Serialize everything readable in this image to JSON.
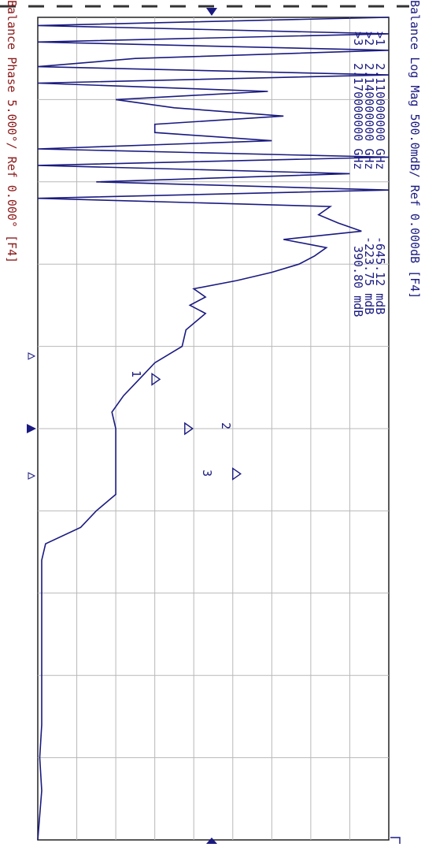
{
  "trace1": {
    "header": "Balance Log Mag 500.0mdB/ Ref 0.000dB [F4]",
    "color": "#1a1a80"
  },
  "trace2": {
    "header": "Balance Phase 5.000°/ Ref 0.000° [F4]",
    "color": "#8b1a1a"
  },
  "colors": {
    "background": "#ffffff",
    "grid": "#b8b8b8",
    "trace": "#1a1a80",
    "border": "#222222"
  },
  "grid": {
    "divisions_x": 10,
    "divisions_y": 9,
    "visible": true
  },
  "markers": [
    {
      "id": "1",
      "label": ">1",
      "freq": "2.110000000 GHz",
      "value": "-645.12 mdB",
      "number": "1"
    },
    {
      "id": "2",
      "label": ">2",
      "freq": "2.140000000 GHz",
      "value": "-223.75 mdB",
      "number": "2"
    },
    {
      "id": "3",
      "label": ">3",
      "freq": "2.170000000 GHz",
      "value": "390.80 mdB",
      "number": "3"
    }
  ],
  "chart_data": {
    "type": "line",
    "orientation": "rotated-90-clockwise",
    "title": "Balance Log Mag 500.0mdB/ Ref 0.000dB [F4]",
    "ylabel": "Balance Log Mag (mdB)",
    "y_scale_per_div_mdB": 500,
    "y_ref_dB": 0,
    "grid": true,
    "series": [
      {
        "name": "Balance Log Mag",
        "x_fraction": [
          0.0,
          0.01,
          0.02,
          0.03,
          0.04,
          0.05,
          0.06,
          0.07,
          0.08,
          0.09,
          0.1,
          0.11,
          0.12,
          0.13,
          0.14,
          0.15,
          0.16,
          0.17,
          0.18,
          0.19,
          0.2,
          0.21,
          0.22,
          0.23,
          0.24,
          0.25,
          0.26,
          0.27,
          0.28,
          0.29,
          0.3,
          0.31,
          0.32,
          0.33,
          0.34,
          0.35,
          0.36,
          0.38,
          0.4,
          0.42,
          0.44,
          0.46,
          0.48,
          0.5,
          0.52,
          0.54,
          0.56,
          0.58,
          0.6,
          0.62,
          0.64,
          0.66,
          0.68,
          0.7,
          0.74,
          0.78,
          0.82,
          0.86,
          0.9,
          0.94,
          1.0
        ],
        "values": [
          4.5,
          -4.5,
          4.5,
          -4.5,
          4.5,
          -2.0,
          -4.5,
          4.5,
          -4.5,
          1.4,
          -2.5,
          -1.0,
          1.8,
          -1.5,
          -1.5,
          1.5,
          -4.5,
          4.5,
          -4.5,
          3.5,
          -3.0,
          4.5,
          -4.5,
          3.0,
          2.7,
          3.2,
          3.8,
          1.8,
          2.9,
          2.6,
          2.2,
          1.5,
          0.6,
          -0.5,
          -0.2,
          -0.6,
          -0.2,
          -0.7,
          -0.8,
          -1.5,
          -1.9,
          -2.3,
          -2.6,
          -2.5,
          -2.5,
          -2.5,
          -2.5,
          -2.5,
          -3.0,
          -3.4,
          -4.3,
          -4.4,
          -4.4,
          -4.4,
          -4.4,
          -4.4,
          -4.4,
          -4.4,
          -4.45,
          -4.4,
          -4.5
        ]
      }
    ]
  }
}
